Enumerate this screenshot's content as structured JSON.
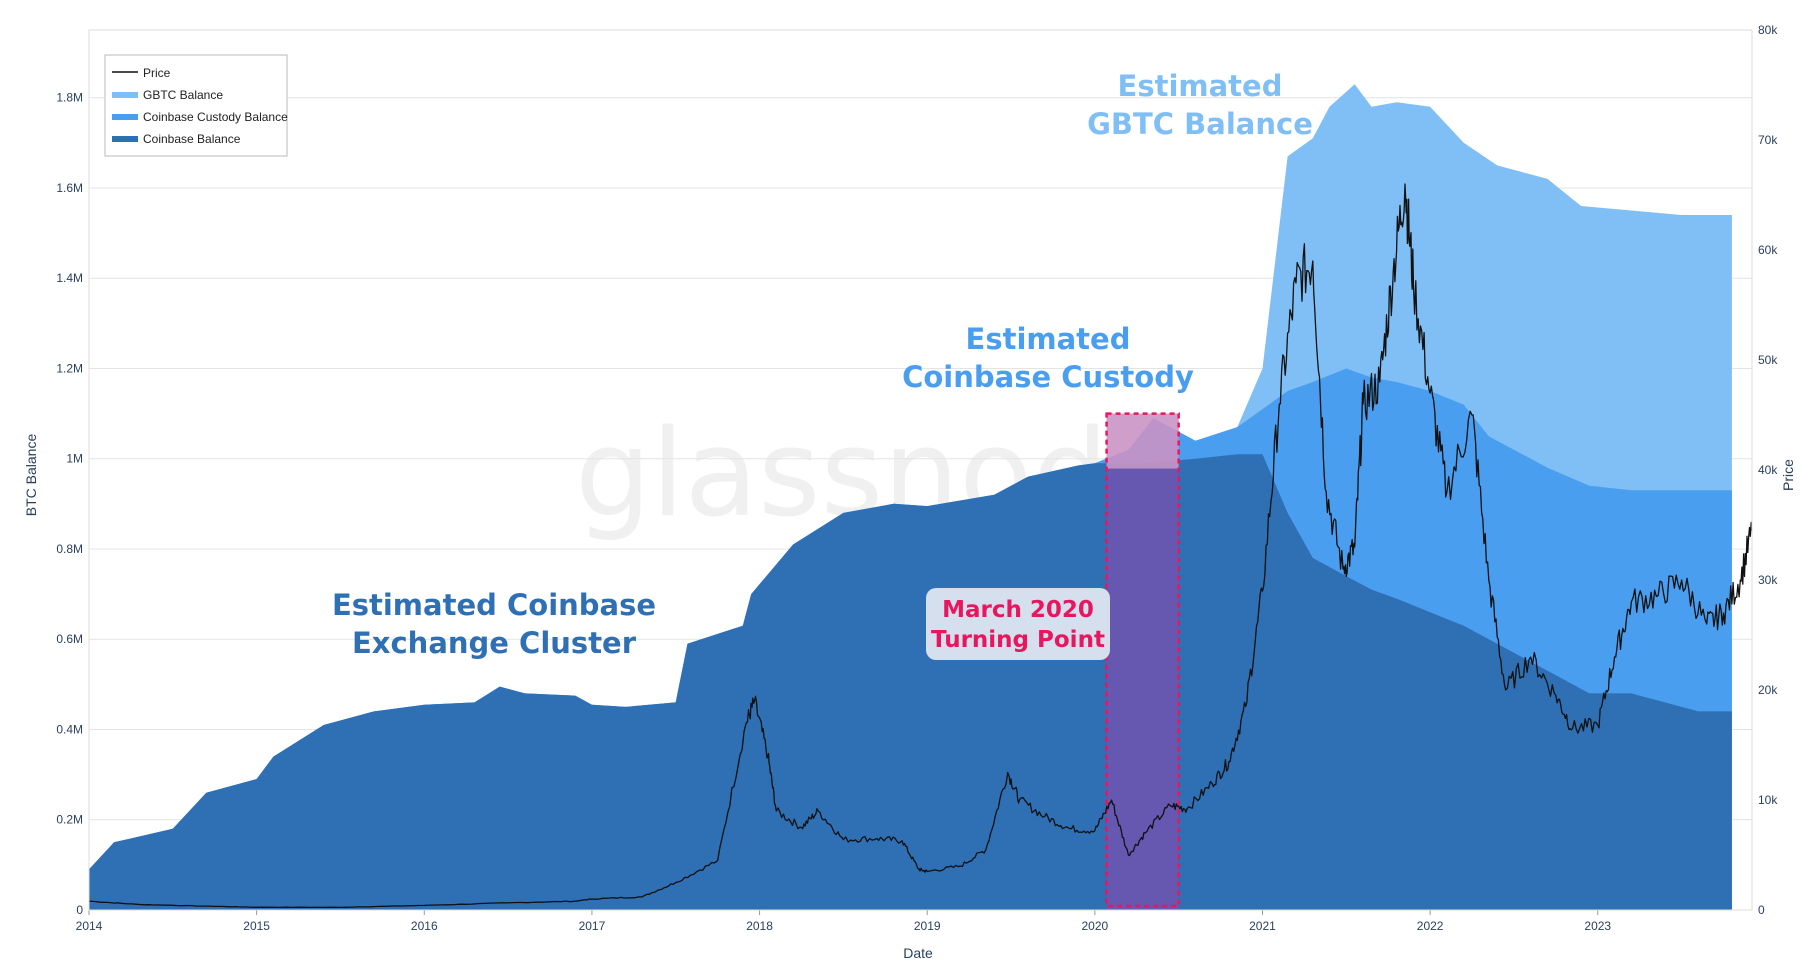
{
  "chart_data": {
    "type": "area",
    "xlabel": "Date",
    "ylabel": "BTC Balance",
    "y2label": "Price",
    "x_ticks": [
      "2014",
      "2015",
      "2016",
      "2017",
      "2018",
      "2019",
      "2020",
      "2021",
      "2022",
      "2023"
    ],
    "y_ticks": [
      "0",
      "0.2M",
      "0.4M",
      "0.6M",
      "0.8M",
      "1M",
      "1.2M",
      "1.4M",
      "1.6M",
      "1.8M"
    ],
    "y2_ticks": [
      "0",
      "10k",
      "20k",
      "30k",
      "40k",
      "50k",
      "60k",
      "70k",
      "80k"
    ],
    "xlim": [
      2014.0,
      2023.92
    ],
    "ylim": [
      0,
      1950000
    ],
    "y2lim": [
      0,
      80000
    ],
    "grid": "horizontal",
    "legend_position": "top-left",
    "watermark": "glassnode",
    "colors": {
      "coinbase_balance": "#2f6fb4",
      "custody_balance": "#4a9ef0",
      "gbtc_balance": "#80bff5",
      "price": "#111111",
      "highlight": "#e8175d",
      "highlight_fill": "#7a4fb0"
    },
    "series": [
      {
        "name": "Coinbase Balance",
        "axis": "left",
        "points": [
          [
            2014.0,
            90000
          ],
          [
            2014.15,
            150000
          ],
          [
            2014.5,
            180000
          ],
          [
            2014.7,
            260000
          ],
          [
            2015.0,
            290000
          ],
          [
            2015.1,
            340000
          ],
          [
            2015.4,
            410000
          ],
          [
            2015.7,
            440000
          ],
          [
            2016.0,
            455000
          ],
          [
            2016.3,
            460000
          ],
          [
            2016.45,
            495000
          ],
          [
            2016.6,
            480000
          ],
          [
            2016.9,
            475000
          ],
          [
            2017.0,
            455000
          ],
          [
            2017.2,
            450000
          ],
          [
            2017.5,
            460000
          ],
          [
            2017.57,
            590000
          ],
          [
            2017.9,
            630000
          ],
          [
            2017.95,
            700000
          ],
          [
            2018.2,
            810000
          ],
          [
            2018.5,
            880000
          ],
          [
            2018.8,
            900000
          ],
          [
            2019.0,
            895000
          ],
          [
            2019.4,
            920000
          ],
          [
            2019.6,
            960000
          ],
          [
            2019.9,
            985000
          ],
          [
            2020.0,
            990000
          ],
          [
            2020.3,
            990000
          ],
          [
            2020.6,
            1000000
          ],
          [
            2020.85,
            1010000
          ],
          [
            2021.0,
            1010000
          ],
          [
            2021.15,
            880000
          ],
          [
            2021.3,
            780000
          ],
          [
            2021.5,
            740000
          ],
          [
            2021.65,
            710000
          ],
          [
            2021.8,
            690000
          ],
          [
            2022.0,
            660000
          ],
          [
            2022.2,
            630000
          ],
          [
            2022.35,
            600000
          ],
          [
            2022.5,
            570000
          ],
          [
            2022.7,
            530000
          ],
          [
            2022.95,
            480000
          ],
          [
            2023.2,
            480000
          ],
          [
            2023.5,
            450000
          ],
          [
            2023.6,
            440000
          ],
          [
            2023.8,
            440000
          ]
        ]
      },
      {
        "name": "Coinbase Custody Balance",
        "axis": "left",
        "points": [
          [
            2014.0,
            90000
          ],
          [
            2014.15,
            150000
          ],
          [
            2014.5,
            180000
          ],
          [
            2014.7,
            260000
          ],
          [
            2015.0,
            290000
          ],
          [
            2015.1,
            340000
          ],
          [
            2015.4,
            410000
          ],
          [
            2015.7,
            440000
          ],
          [
            2016.0,
            455000
          ],
          [
            2016.3,
            460000
          ],
          [
            2016.45,
            495000
          ],
          [
            2016.6,
            480000
          ],
          [
            2016.9,
            475000
          ],
          [
            2017.0,
            455000
          ],
          [
            2017.2,
            450000
          ],
          [
            2017.5,
            460000
          ],
          [
            2017.57,
            590000
          ],
          [
            2017.9,
            630000
          ],
          [
            2017.95,
            700000
          ],
          [
            2018.2,
            810000
          ],
          [
            2018.5,
            880000
          ],
          [
            2018.8,
            900000
          ],
          [
            2019.0,
            895000
          ],
          [
            2019.4,
            920000
          ],
          [
            2019.6,
            960000
          ],
          [
            2019.9,
            985000
          ],
          [
            2020.0,
            990000
          ],
          [
            2020.2,
            1020000
          ],
          [
            2020.35,
            1090000
          ],
          [
            2020.6,
            1040000
          ],
          [
            2020.85,
            1070000
          ],
          [
            2021.0,
            1110000
          ],
          [
            2021.15,
            1150000
          ],
          [
            2021.3,
            1170000
          ],
          [
            2021.5,
            1200000
          ],
          [
            2021.65,
            1180000
          ],
          [
            2021.8,
            1170000
          ],
          [
            2022.0,
            1150000
          ],
          [
            2022.2,
            1120000
          ],
          [
            2022.35,
            1050000
          ],
          [
            2022.5,
            1020000
          ],
          [
            2022.7,
            980000
          ],
          [
            2022.95,
            940000
          ],
          [
            2023.2,
            930000
          ],
          [
            2023.5,
            930000
          ],
          [
            2023.6,
            930000
          ],
          [
            2023.8,
            930000
          ]
        ]
      },
      {
        "name": "GBTC Balance",
        "axis": "left",
        "points": [
          [
            2014.0,
            90000
          ],
          [
            2014.15,
            150000
          ],
          [
            2014.5,
            180000
          ],
          [
            2014.7,
            260000
          ],
          [
            2015.0,
            290000
          ],
          [
            2015.1,
            340000
          ],
          [
            2015.4,
            410000
          ],
          [
            2015.7,
            440000
          ],
          [
            2016.0,
            455000
          ],
          [
            2016.3,
            460000
          ],
          [
            2016.45,
            495000
          ],
          [
            2016.6,
            480000
          ],
          [
            2016.9,
            475000
          ],
          [
            2017.0,
            455000
          ],
          [
            2017.2,
            450000
          ],
          [
            2017.5,
            460000
          ],
          [
            2017.57,
            590000
          ],
          [
            2017.9,
            630000
          ],
          [
            2017.95,
            700000
          ],
          [
            2018.2,
            810000
          ],
          [
            2018.5,
            880000
          ],
          [
            2018.8,
            900000
          ],
          [
            2019.0,
            895000
          ],
          [
            2019.4,
            920000
          ],
          [
            2019.6,
            960000
          ],
          [
            2019.9,
            985000
          ],
          [
            2020.0,
            990000
          ],
          [
            2020.2,
            1020000
          ],
          [
            2020.35,
            1090000
          ],
          [
            2020.6,
            1040000
          ],
          [
            2020.85,
            1070000
          ],
          [
            2021.0,
            1200000
          ],
          [
            2021.15,
            1670000
          ],
          [
            2021.3,
            1710000
          ],
          [
            2021.4,
            1780000
          ],
          [
            2021.55,
            1830000
          ],
          [
            2021.65,
            1780000
          ],
          [
            2021.8,
            1790000
          ],
          [
            2022.0,
            1780000
          ],
          [
            2022.2,
            1700000
          ],
          [
            2022.4,
            1650000
          ],
          [
            2022.7,
            1620000
          ],
          [
            2022.9,
            1560000
          ],
          [
            2023.2,
            1550000
          ],
          [
            2023.5,
            1540000
          ],
          [
            2023.8,
            1540000
          ]
        ]
      },
      {
        "name": "Price",
        "axis": "right",
        "points": [
          [
            2014.0,
            800
          ],
          [
            2014.3,
            500
          ],
          [
            2014.7,
            350
          ],
          [
            2015.0,
            250
          ],
          [
            2015.5,
            240
          ],
          [
            2016.0,
            420
          ],
          [
            2016.5,
            650
          ],
          [
            2016.9,
            800
          ],
          [
            2017.0,
            1000
          ],
          [
            2017.3,
            1200
          ],
          [
            2017.5,
            2500
          ],
          [
            2017.75,
            4500
          ],
          [
            2017.92,
            17000
          ],
          [
            2017.97,
            19000
          ],
          [
            2018.05,
            14000
          ],
          [
            2018.1,
            9000
          ],
          [
            2018.25,
            7500
          ],
          [
            2018.35,
            9000
          ],
          [
            2018.5,
            6400
          ],
          [
            2018.7,
            6500
          ],
          [
            2018.85,
            6300
          ],
          [
            2018.95,
            3700
          ],
          [
            2019.0,
            3500
          ],
          [
            2019.2,
            4000
          ],
          [
            2019.35,
            5500
          ],
          [
            2019.48,
            12500
          ],
          [
            2019.55,
            10000
          ],
          [
            2019.7,
            8500
          ],
          [
            2019.85,
            7400
          ],
          [
            2020.0,
            7200
          ],
          [
            2020.1,
            10000
          ],
          [
            2020.2,
            5000
          ],
          [
            2020.3,
            7000
          ],
          [
            2020.45,
            9500
          ],
          [
            2020.55,
            9200
          ],
          [
            2020.7,
            11500
          ],
          [
            2020.8,
            13500
          ],
          [
            2020.9,
            18500
          ],
          [
            2021.0,
            29000
          ],
          [
            2021.1,
            46000
          ],
          [
            2021.2,
            57000
          ],
          [
            2021.3,
            59000
          ],
          [
            2021.38,
            38000
          ],
          [
            2021.48,
            31000
          ],
          [
            2021.55,
            33000
          ],
          [
            2021.6,
            46000
          ],
          [
            2021.7,
            48000
          ],
          [
            2021.78,
            58000
          ],
          [
            2021.85,
            66000
          ],
          [
            2021.9,
            57000
          ],
          [
            2022.0,
            47000
          ],
          [
            2022.1,
            38000
          ],
          [
            2022.25,
            45000
          ],
          [
            2022.35,
            30000
          ],
          [
            2022.45,
            20000
          ],
          [
            2022.6,
            23000
          ],
          [
            2022.75,
            19500
          ],
          [
            2022.85,
            16500
          ],
          [
            2023.0,
            16800
          ],
          [
            2023.1,
            23000
          ],
          [
            2023.2,
            28000
          ],
          [
            2023.35,
            28500
          ],
          [
            2023.5,
            30000
          ],
          [
            2023.65,
            26000
          ],
          [
            2023.75,
            27000
          ],
          [
            2023.85,
            30000
          ],
          [
            2023.92,
            34500
          ]
        ]
      }
    ],
    "highlight": {
      "x_range": [
        2020.07,
        2020.5
      ],
      "y_top": 1100000
    },
    "annotations": {
      "coinbase_exchange": [
        "Estimated Coinbase",
        "Exchange Cluster"
      ],
      "coinbase_custody": [
        "Estimated",
        "Coinbase Custody"
      ],
      "gbtc": [
        "Estimated",
        "GBTC Balance"
      ],
      "turning_point": [
        "March 2020",
        "Turning Point"
      ]
    }
  }
}
